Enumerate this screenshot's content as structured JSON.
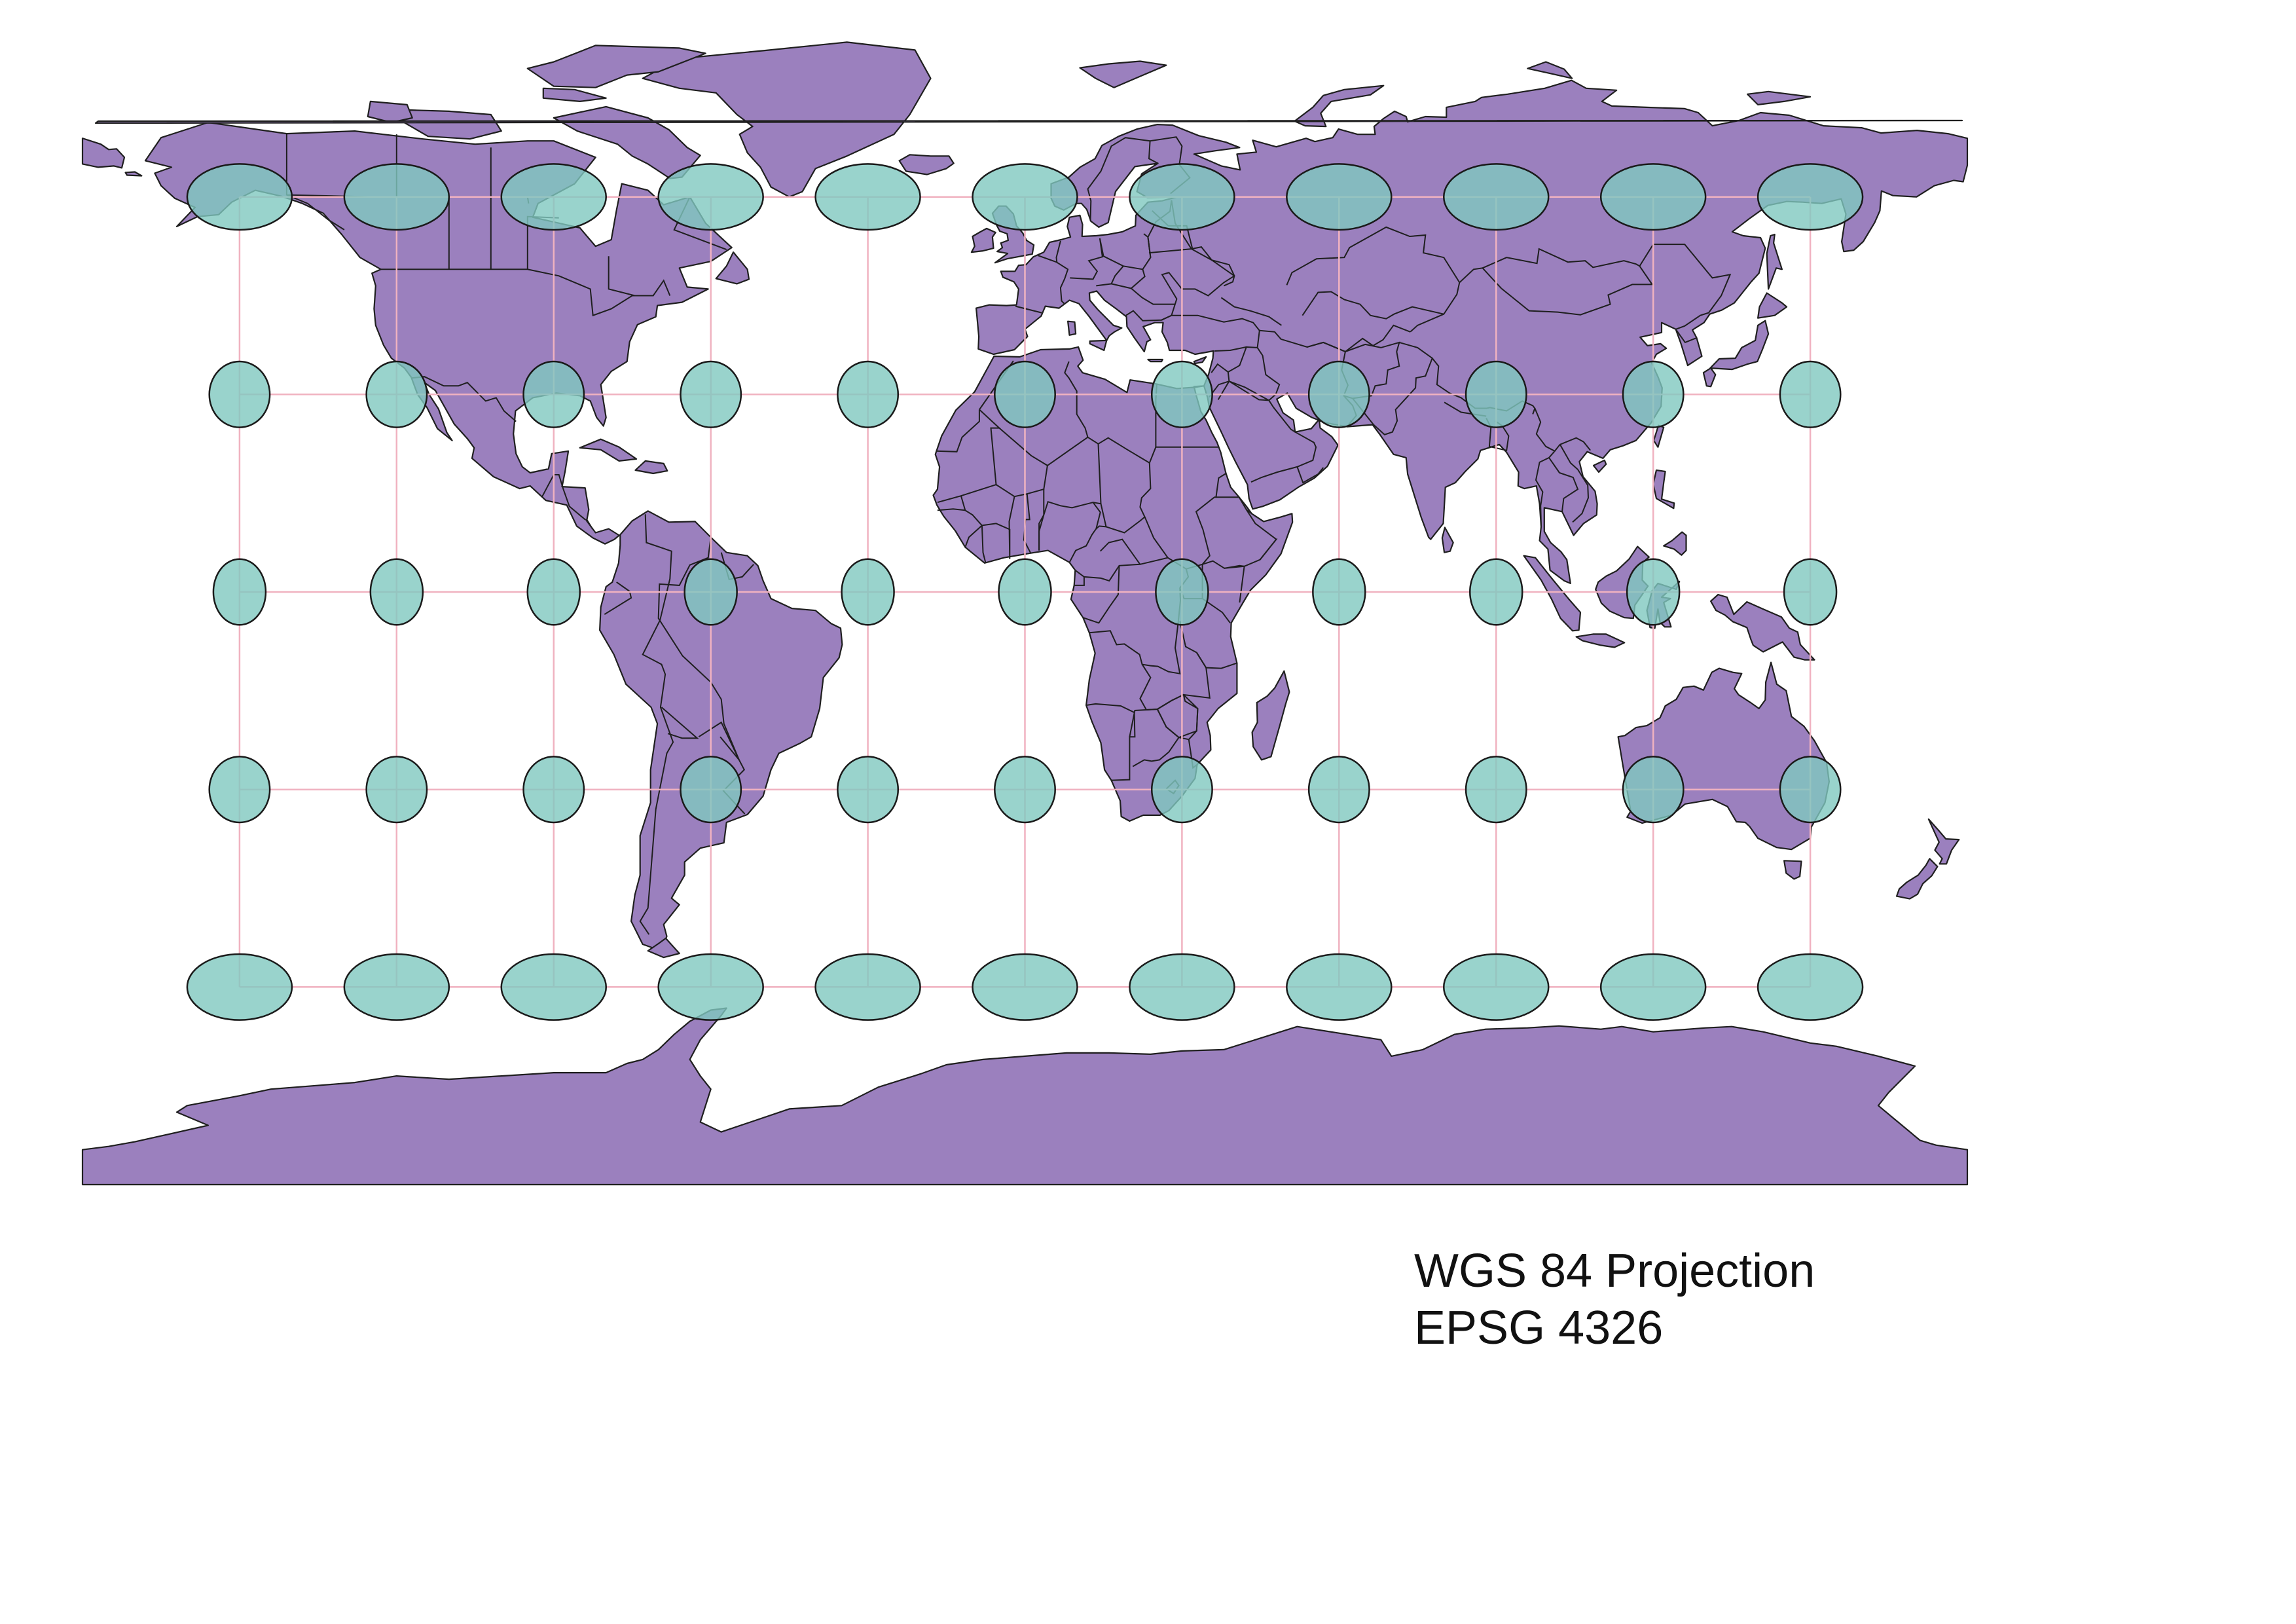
{
  "map": {
    "projection_name": "WGS 84 Projection",
    "epsg_code": "EPSG 4326",
    "extent": {
      "lon": [
        -180,
        180
      ],
      "lat": [
        -90,
        90
      ]
    },
    "colors": {
      "land": "#9b80be",
      "coast": "#1f1f1f",
      "indicatrix_fill": "#7fc8bf",
      "indicatrix_stroke": "#1a1a1a",
      "graticule": "#f0b2c0",
      "background": "#ffffff"
    },
    "graticule": {
      "lons": [
        -150,
        -120,
        -90,
        -60,
        -30,
        0,
        30,
        60,
        90,
        120,
        150
      ],
      "lats": [
        60,
        30,
        0,
        -30,
        -60
      ]
    },
    "indicatrix": {
      "lons": [
        -150,
        -120,
        -90,
        -60,
        -30,
        0,
        30,
        60,
        90,
        120,
        150
      ],
      "lats": [
        60,
        30,
        0,
        -30,
        -60
      ]
    }
  }
}
